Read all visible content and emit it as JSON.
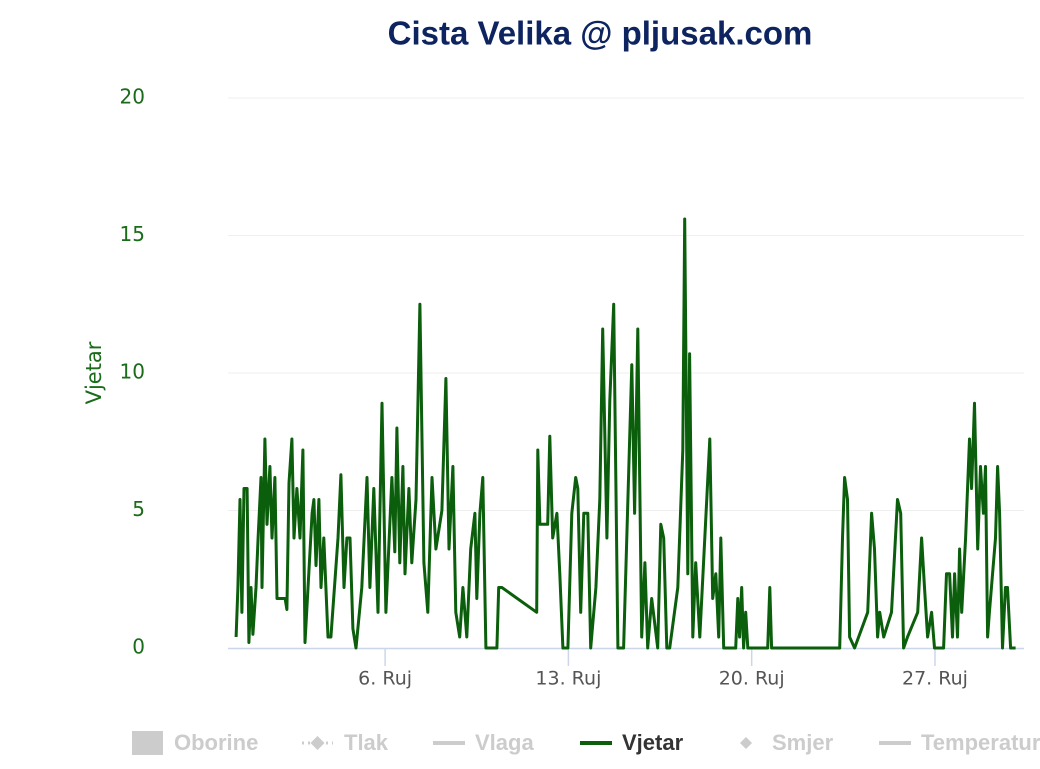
{
  "chart_data": {
    "type": "line",
    "title": "Cista Velika @ pljusak.com",
    "y_label": "Vjetar",
    "xlim": [
      0,
      30.4
    ],
    "xticks": [
      {
        "value": 6,
        "label": "6. Ruj"
      },
      {
        "value": 13,
        "label": "13. Ruj"
      },
      {
        "value": 20,
        "label": "20. Ruj"
      },
      {
        "value": 27,
        "label": "27. Ruj"
      }
    ],
    "ylim": [
      0,
      20
    ],
    "yticks": [
      0,
      5,
      10,
      15,
      20
    ],
    "grid": true,
    "hidden_color": "#cccccc",
    "series": [
      {
        "name": "Oborine",
        "symbol": "rect",
        "visible": false
      },
      {
        "name": "Tlak",
        "symbol": "dotted-diamond",
        "visible": false
      },
      {
        "name": "Vlaga",
        "symbol": "line",
        "visible": false
      },
      {
        "name": "Vjetar",
        "symbol": "line",
        "visible": true,
        "color": "#0b5e0b",
        "x": [
          0.31,
          0.38,
          0.46,
          0.53,
          0.61,
          0.73,
          0.8,
          0.88,
          0.95,
          1.07,
          1.15,
          1.26,
          1.3,
          1.41,
          1.49,
          1.6,
          1.68,
          1.79,
          1.87,
          2.18,
          2.25,
          2.33,
          2.44,
          2.52,
          2.63,
          2.75,
          2.86,
          2.94,
          3.21,
          3.28,
          3.36,
          3.47,
          3.55,
          3.66,
          3.82,
          3.93,
          4.2,
          4.31,
          4.43,
          4.54,
          4.66,
          4.77,
          4.89,
          5.11,
          5.31,
          5.42,
          5.57,
          5.73,
          5.88,
          6.03,
          6.26,
          6.37,
          6.45,
          6.56,
          6.68,
          6.76,
          6.91,
          7.02,
          7.18,
          7.33,
          7.48,
          7.63,
          7.79,
          7.94,
          8.17,
          8.32,
          8.44,
          8.59,
          8.7,
          8.85,
          8.97,
          9.12,
          9.27,
          9.43,
          9.5,
          9.62,
          9.73,
          9.85,
          10.27,
          10.34,
          10.46,
          11.79,
          11.83,
          11.91,
          12.21,
          12.29,
          12.4,
          12.56,
          12.67,
          12.79,
          12.98,
          13.13,
          13.28,
          13.36,
          13.47,
          13.59,
          13.74,
          13.85,
          14.05,
          14.2,
          14.31,
          14.47,
          14.58,
          14.73,
          14.89,
          15.11,
          15.42,
          15.53,
          15.65,
          15.8,
          15.92,
          16.03,
          16.18,
          16.41,
          16.53,
          16.64,
          16.76,
          16.87,
          17.18,
          17.37,
          17.44,
          17.56,
          17.63,
          17.75,
          17.86,
          18.02,
          18.4,
          18.51,
          18.63,
          18.74,
          18.82,
          18.93,
          19.39,
          19.47,
          19.54,
          19.62,
          19.69,
          19.77,
          19.85,
          20.61,
          20.69,
          20.76,
          23.36,
          23.47,
          23.55,
          23.66,
          23.74,
          23.93,
          24.43,
          24.58,
          24.69,
          24.81,
          24.89,
          25.04,
          25.34,
          25.57,
          25.69,
          25.8,
          25.95,
          26.34,
          26.49,
          26.6,
          26.72,
          26.87,
          26.98,
          27.33,
          27.44,
          27.56,
          27.67,
          27.75,
          27.86,
          27.94,
          28.02,
          28.17,
          28.32,
          28.4,
          28.51,
          28.63,
          28.74,
          28.85,
          28.93,
          29.01,
          29.08,
          29.31,
          29.39,
          29.47,
          29.58,
          29.69,
          29.77,
          29.89,
          30.08
        ],
        "values": [
          0.4,
          2.2,
          5.4,
          1.3,
          5.8,
          5.8,
          0.2,
          2.2,
          0.5,
          2.2,
          4.0,
          6.2,
          2.2,
          7.6,
          4.5,
          6.6,
          4.0,
          6.2,
          1.8,
          1.8,
          1.4,
          6.0,
          7.6,
          4.0,
          5.8,
          4.0,
          7.2,
          0.2,
          4.9,
          5.4,
          3.0,
          5.4,
          2.2,
          4.0,
          0.4,
          0.4,
          4.0,
          6.3,
          2.2,
          4.0,
          4.0,
          0.7,
          0,
          2.2,
          6.2,
          2.2,
          5.8,
          1.3,
          8.9,
          1.3,
          6.2,
          3.5,
          8.0,
          3.1,
          6.6,
          2.7,
          5.8,
          3.1,
          5.4,
          12.5,
          3.1,
          1.3,
          6.2,
          3.6,
          5.0,
          9.8,
          3.6,
          6.6,
          1.3,
          0.4,
          2.2,
          0.4,
          3.6,
          4.9,
          1.8,
          4.9,
          6.2,
          0,
          0,
          2.2,
          2.2,
          1.3,
          7.2,
          4.5,
          4.5,
          7.7,
          4.0,
          4.9,
          2.7,
          0,
          0,
          4.9,
          6.2,
          5.8,
          1.3,
          4.9,
          4.9,
          0,
          2.2,
          5.4,
          11.6,
          4.0,
          9.0,
          12.5,
          0,
          0,
          10.3,
          4.9,
          11.6,
          0.4,
          3.1,
          0,
          1.8,
          0,
          4.5,
          4.0,
          0,
          0,
          2.2,
          7.2,
          15.6,
          2.7,
          10.7,
          0.4,
          3.1,
          0.4,
          7.6,
          1.8,
          2.7,
          0.4,
          4.0,
          0,
          0,
          1.8,
          0.4,
          2.2,
          0,
          1.3,
          0,
          0,
          2.2,
          0,
          0,
          4.0,
          6.2,
          5.4,
          0.4,
          0,
          1.3,
          4.9,
          3.6,
          0.4,
          1.3,
          0.4,
          1.3,
          5.4,
          4.9,
          0,
          0.4,
          1.3,
          4.0,
          2.2,
          0.4,
          1.3,
          0,
          0,
          2.7,
          2.7,
          0.4,
          2.7,
          0.4,
          3.6,
          1.3,
          4.0,
          7.6,
          5.8,
          8.9,
          3.6,
          6.6,
          4.9,
          6.6,
          0.4,
          1.3,
          4.0,
          6.6,
          4.9,
          0,
          2.2,
          2.2,
          0,
          0
        ]
      },
      {
        "name": "Smjer",
        "symbol": "diamond",
        "visible": false
      },
      {
        "name": "Temperatura",
        "symbol": "line",
        "visible": false
      }
    ]
  }
}
